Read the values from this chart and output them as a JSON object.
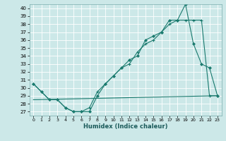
{
  "xlabel": "Humidex (Indice chaleur)",
  "bg_color": "#cce8e8",
  "grid_color": "#ffffff",
  "line_color": "#1a7a6e",
  "x_ticks": [
    0,
    1,
    2,
    3,
    4,
    5,
    6,
    7,
    8,
    9,
    10,
    11,
    12,
    13,
    14,
    15,
    16,
    17,
    18,
    19,
    20,
    21,
    22,
    23
  ],
  "y_ticks": [
    27,
    28,
    29,
    30,
    31,
    32,
    33,
    34,
    35,
    36,
    37,
    38,
    39,
    40
  ],
  "xlim": [
    -0.5,
    23.5
  ],
  "ylim": [
    26.5,
    40.5
  ],
  "line1_x": [
    0,
    1,
    2,
    3,
    4,
    5,
    6,
    7,
    8,
    9,
    10,
    11,
    12,
    13,
    14,
    15,
    16,
    17,
    18,
    19,
    20,
    21,
    22,
    23
  ],
  "line1_y": [
    30.5,
    29.5,
    28.5,
    28.5,
    27.5,
    27.0,
    27.0,
    27.0,
    29.0,
    30.5,
    31.5,
    32.5,
    33.5,
    34.0,
    36.0,
    36.5,
    37.0,
    38.5,
    38.5,
    40.5,
    35.5,
    33.0,
    32.5,
    29.0
  ],
  "line2_x": [
    0,
    1,
    2,
    3,
    4,
    5,
    6,
    7,
    8,
    9,
    10,
    11,
    12,
    13,
    14,
    15,
    16,
    17,
    18,
    19,
    20,
    21,
    22,
    23
  ],
  "line2_y": [
    30.5,
    29.5,
    28.5,
    28.5,
    27.5,
    27.0,
    27.0,
    27.5,
    29.5,
    30.5,
    31.5,
    32.5,
    33.0,
    34.5,
    35.5,
    36.0,
    37.0,
    38.0,
    38.5,
    38.5,
    38.5,
    38.5,
    29.0,
    29.0
  ],
  "line3_x": [
    0,
    23
  ],
  "line3_y": [
    28.5,
    29.0
  ]
}
